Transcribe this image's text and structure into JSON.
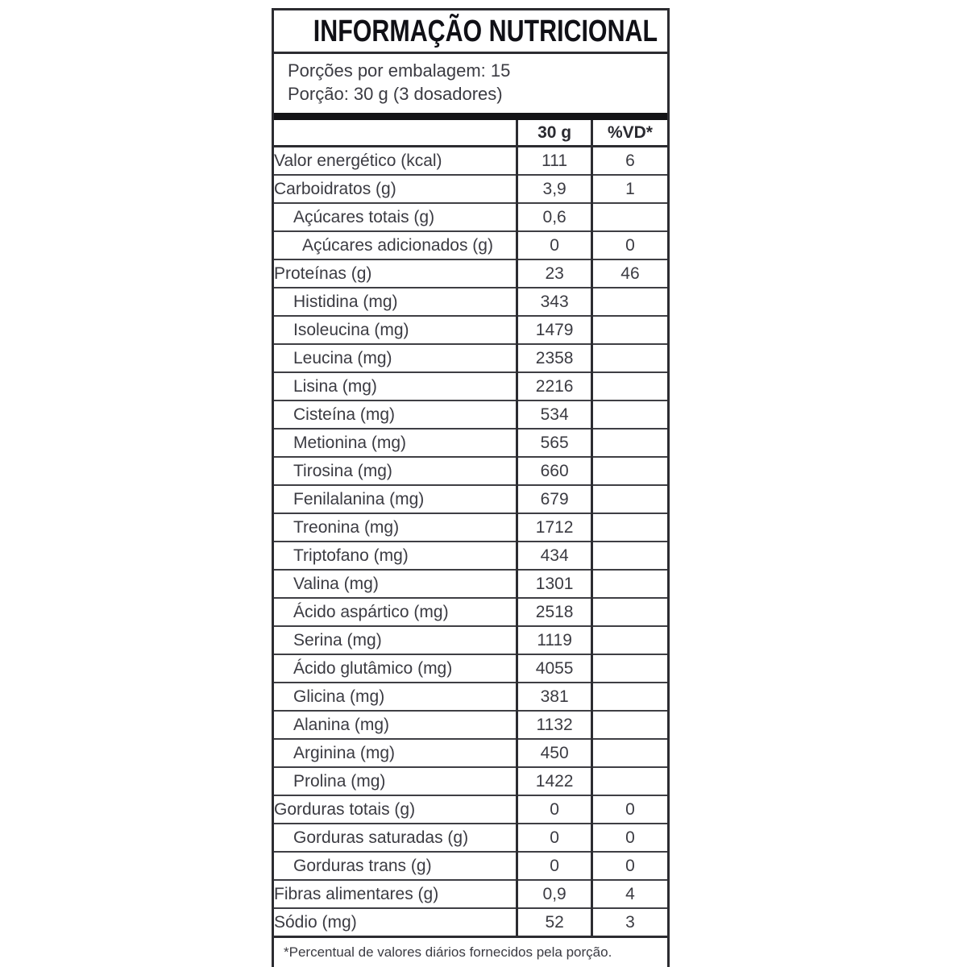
{
  "label": {
    "title": "INFORMAÇÃO NUTRICIONAL",
    "servings_per_package": "Porções por embalagem: 15",
    "portion": "Porção: 30 g (3 dosadores)",
    "footnote": "*Percentual de valores diários fornecidos pela porção."
  },
  "table": {
    "header": {
      "amount": "30 g",
      "vd": "%VD*"
    },
    "rows": [
      {
        "label": "Valor energético (kcal)",
        "amount": "111",
        "vd": "6",
        "indent": 0
      },
      {
        "label": "Carboidratos (g)",
        "amount": "3,9",
        "vd": "1",
        "indent": 0
      },
      {
        "label": "Açúcares totais (g)",
        "amount": "0,6",
        "vd": "",
        "indent": 1
      },
      {
        "label": "Açúcares adicionados (g)",
        "amount": "0",
        "vd": "0",
        "indent": 2
      },
      {
        "label": "Proteínas (g)",
        "amount": "23",
        "vd": "46",
        "indent": 0
      },
      {
        "label": "Histidina (mg)",
        "amount": "343",
        "vd": "",
        "indent": 1
      },
      {
        "label": "Isoleucina (mg)",
        "amount": "1479",
        "vd": "",
        "indent": 1
      },
      {
        "label": "Leucina (mg)",
        "amount": "2358",
        "vd": "",
        "indent": 1
      },
      {
        "label": "Lisina (mg)",
        "amount": "2216",
        "vd": "",
        "indent": 1
      },
      {
        "label": "Cisteína (mg)",
        "amount": "534",
        "vd": "",
        "indent": 1
      },
      {
        "label": "Metionina (mg)",
        "amount": "565",
        "vd": "",
        "indent": 1
      },
      {
        "label": "Tirosina (mg)",
        "amount": "660",
        "vd": "",
        "indent": 1
      },
      {
        "label": "Fenilalanina (mg)",
        "amount": "679",
        "vd": "",
        "indent": 1
      },
      {
        "label": "Treonina (mg)",
        "amount": "1712",
        "vd": "",
        "indent": 1
      },
      {
        "label": "Triptofano (mg)",
        "amount": "434",
        "vd": "",
        "indent": 1
      },
      {
        "label": "Valina (mg)",
        "amount": "1301",
        "vd": "",
        "indent": 1
      },
      {
        "label": "Ácido aspártico (mg)",
        "amount": "2518",
        "vd": "",
        "indent": 1
      },
      {
        "label": "Serina (mg)",
        "amount": "1119",
        "vd": "",
        "indent": 1
      },
      {
        "label": "Ácido glutâmico (mg)",
        "amount": "4055",
        "vd": "",
        "indent": 1
      },
      {
        "label": "Glicina (mg)",
        "amount": "381",
        "vd": "",
        "indent": 1
      },
      {
        "label": "Alanina (mg)",
        "amount": "1132",
        "vd": "",
        "indent": 1
      },
      {
        "label": "Arginina (mg)",
        "amount": "450",
        "vd": "",
        "indent": 1
      },
      {
        "label": "Prolina (mg)",
        "amount": "1422",
        "vd": "",
        "indent": 1
      },
      {
        "label": "Gorduras totais (g)",
        "amount": "0",
        "vd": "0",
        "indent": 0
      },
      {
        "label": "Gorduras saturadas (g)",
        "amount": "0",
        "vd": "0",
        "indent": 1
      },
      {
        "label": "Gorduras trans (g)",
        "amount": "0",
        "vd": "0",
        "indent": 1
      },
      {
        "label": "Fibras alimentares (g)",
        "amount": "0,9",
        "vd": "4",
        "indent": 0
      },
      {
        "label": "Sódio (mg)",
        "amount": "52",
        "vd": "3",
        "indent": 0
      }
    ]
  }
}
